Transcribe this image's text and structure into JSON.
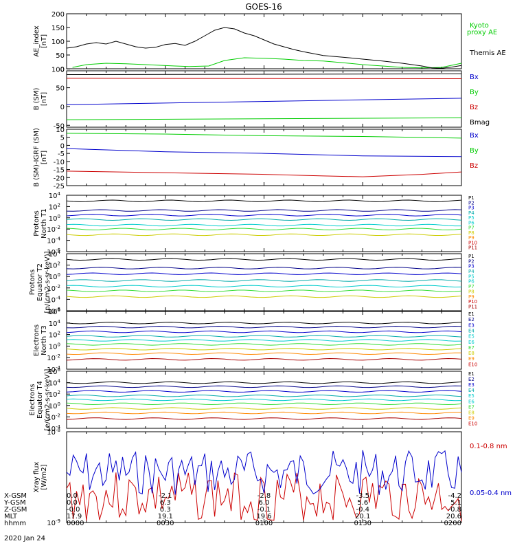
{
  "title": "GOES-16",
  "date": "2020 Jan 24",
  "footer": {
    "rows": [
      {
        "label": "X-GSM",
        "values": [
          "0.0",
          "-2.1",
          "-2.8",
          "-3.5",
          "-4.2"
        ]
      },
      {
        "label": "Y-GSM",
        "values": [
          "0.0",
          "6.3",
          "6.0",
          "5.6",
          "5.1"
        ]
      },
      {
        "label": "Z-GSM",
        "values": [
          "-0.0",
          "0.3",
          "-0.1",
          "-0.4",
          "-0.8"
        ]
      },
      {
        "label": "MLT",
        "values": [
          "17.9",
          "19.1",
          "19.6",
          "20.1",
          "20.6"
        ]
      },
      {
        "label": "hhmm",
        "values": [
          "0000",
          "0030",
          "0100",
          "0130",
          "0200"
        ]
      }
    ]
  },
  "colors": {
    "black": "#000000",
    "green": "#00cc00",
    "blue": "#0000cc",
    "red": "#cc0000",
    "cyan": "#00cccc",
    "teal": "#00aaaa",
    "yellow": "#cccc00",
    "orange": "#ff8800",
    "darkred": "#aa0000",
    "navy": "#000088",
    "lightgreen": "#33dd33"
  },
  "chart_data": [
    {
      "type": "line",
      "ylabel": "AE_index\n[nT]",
      "ylim": [
        0,
        200
      ],
      "yticks": [
        "0",
        "50",
        "100",
        "150",
        "200"
      ],
      "xlim": [
        0,
        2
      ],
      "series": [
        {
          "name": "Kyoto proxy AE",
          "color": "#00cc00",
          "x": [
            0.03,
            0.1,
            0.2,
            0.3,
            0.4,
            0.55,
            0.62,
            0.72,
            0.8,
            0.9,
            1.0,
            1.1,
            1.2,
            1.3,
            1.4,
            1.5,
            1.6,
            1.7,
            1.8,
            1.9,
            2.0
          ],
          "y": [
            5,
            15,
            20,
            18,
            15,
            10,
            8,
            10,
            30,
            40,
            38,
            35,
            30,
            28,
            22,
            15,
            10,
            5,
            3,
            5,
            20
          ]
        },
        {
          "name": "Themis AE",
          "color": "#000000",
          "x": [
            0.0,
            0.05,
            0.1,
            0.15,
            0.2,
            0.25,
            0.3,
            0.35,
            0.4,
            0.45,
            0.5,
            0.55,
            0.6,
            0.65,
            0.7,
            0.75,
            0.8,
            0.85,
            0.9,
            0.95,
            1.0,
            1.05,
            1.1,
            1.15,
            1.2,
            1.3,
            1.4,
            1.5,
            1.6,
            1.7,
            1.8,
            1.85,
            1.9,
            1.95,
            2.0
          ],
          "y": [
            75,
            80,
            90,
            95,
            90,
            100,
            90,
            80,
            75,
            78,
            88,
            92,
            85,
            100,
            120,
            140,
            150,
            145,
            130,
            120,
            105,
            90,
            80,
            70,
            62,
            48,
            42,
            35,
            28,
            20,
            10,
            3,
            2,
            6,
            12
          ]
        }
      ],
      "legend": [
        "Kyoto proxy AE",
        "Themis AE"
      ]
    },
    {
      "type": "line",
      "ylabel": "B (SM)\n[nT]",
      "ylim": [
        -55,
        95
      ],
      "yticks": [
        "-50",
        "0",
        "50",
        "100"
      ],
      "xlim": [
        0,
        2
      ],
      "series": [
        {
          "name": "Bx",
          "color": "#0000cc",
          "x": [
            0,
            2
          ],
          "y": [
            5,
            22
          ]
        },
        {
          "name": "By",
          "color": "#00cc00",
          "x": [
            0,
            2
          ],
          "y": [
            -35,
            -30
          ]
        },
        {
          "name": "Bz",
          "color": "#cc0000",
          "x": [
            0,
            2
          ],
          "y": [
            75,
            74
          ]
        },
        {
          "name": "Bmag",
          "color": "#000000",
          "x": [
            0,
            2
          ],
          "y": [
            85,
            87
          ]
        }
      ],
      "legend": [
        "Bx",
        "By",
        "Bz",
        "Bmag"
      ]
    },
    {
      "type": "line",
      "ylabel": "B (SM)-IGRF (SM)\n[nT]",
      "ylim": [
        -25,
        10
      ],
      "yticks": [
        "10",
        "5",
        "0",
        "-5",
        "-10",
        "-15",
        "-20",
        "-25"
      ],
      "xlim": [
        0,
        2
      ],
      "series": [
        {
          "name": "Bx",
          "color": "#0000cc",
          "x": [
            0,
            0.5,
            1.0,
            1.5,
            2.0
          ],
          "y": [
            -2,
            -4,
            -5,
            -6.5,
            -7
          ]
        },
        {
          "name": "By",
          "color": "#00cc00",
          "x": [
            0,
            0.5,
            1.0,
            1.5,
            2.0
          ],
          "y": [
            7.5,
            7,
            6,
            5.5,
            4.5
          ]
        },
        {
          "name": "Bz",
          "color": "#cc0000",
          "x": [
            0,
            0.5,
            1.0,
            1.3,
            1.5,
            1.8,
            2.0
          ],
          "y": [
            -16,
            -17,
            -18,
            -19,
            -19.5,
            -18,
            -16.5
          ]
        }
      ],
      "legend": [
        "Bx",
        "By",
        "Bz"
      ]
    },
    {
      "type": "line",
      "ylabel": "Protons\nNorth T1",
      "yscale": "log",
      "yticks": [
        "10^4",
        "10^2",
        "10^0",
        "10^-2",
        "10^-4",
        "10^-6"
      ],
      "legend": [
        "P1",
        "P2",
        "P3",
        "P4",
        "P5",
        "P6",
        "P7",
        "P8",
        "P9",
        "P10",
        "P11"
      ],
      "series": [
        {
          "name": "P1",
          "color": "#000000",
          "value": 1000
        },
        {
          "name": "P2",
          "color": "#000088",
          "value": 20
        },
        {
          "name": "P3",
          "color": "#0000cc",
          "value": 3
        },
        {
          "name": "P4",
          "color": "#00aaaa",
          "value": 0.5
        },
        {
          "name": "P5",
          "color": "#00cccc",
          "value": 0.05
        },
        {
          "name": "P6",
          "color": "#33dd33",
          "value": 0.01
        },
        {
          "name": "P7",
          "color": "#cccc00",
          "value": 0.001
        }
      ]
    },
    {
      "type": "line",
      "ylabel": "Protons\nEquator T2\n[p/(cm2-s-sr-keV)]",
      "yscale": "log",
      "yticks": [
        "10^4",
        "10^2",
        "10^0",
        "10^-2",
        "10^-4",
        "10^-6"
      ],
      "legend": [
        "P1",
        "P2",
        "P3",
        "P4",
        "P5",
        "P6",
        "P7",
        "P8",
        "P9",
        "P10",
        "P11"
      ],
      "series": [
        {
          "name": "P1",
          "color": "#000000",
          "value": 1000
        },
        {
          "name": "P2",
          "color": "#000088",
          "value": 30
        },
        {
          "name": "P3",
          "color": "#0000cc",
          "value": 3
        },
        {
          "name": "P4",
          "color": "#00aaaa",
          "value": 0.2
        },
        {
          "name": "P5",
          "color": "#00cccc",
          "value": 0.02
        },
        {
          "name": "P6",
          "color": "#33dd33",
          "value": 0.003
        },
        {
          "name": "P7",
          "color": "#cccc00",
          "value": 0.0003
        }
      ]
    },
    {
      "type": "line",
      "ylabel": "Electrons\nNorth T3",
      "yscale": "log",
      "yticks": [
        "10^6",
        "10^4",
        "10^2",
        "10^0",
        "10^-2",
        "10^-4"
      ],
      "legend": [
        "E1",
        "E2",
        "E3",
        "E4",
        "E5",
        "E6",
        "E7",
        "E8",
        "E9",
        "E10"
      ],
      "series": [
        {
          "name": "E1",
          "color": "#000000",
          "value": 10000
        },
        {
          "name": "E2",
          "color": "#000088",
          "value": 2000
        },
        {
          "name": "E3",
          "color": "#0000cc",
          "value": 300
        },
        {
          "name": "E4",
          "color": "#00aaaa",
          "value": 50
        },
        {
          "name": "E5",
          "color": "#00cccc",
          "value": 10
        },
        {
          "name": "E6",
          "color": "#33dd33",
          "value": 2
        },
        {
          "name": "E7",
          "color": "#cccc00",
          "value": 0.3
        },
        {
          "name": "E8",
          "color": "#ff8800",
          "value": 0.05
        },
        {
          "name": "E10",
          "color": "#aa0000",
          "value": 0.005
        }
      ]
    },
    {
      "type": "line",
      "ylabel": "Electrons\nEquator T4\n[e/(cm2-s-sr-keV)]",
      "yscale": "log",
      "yticks": [
        "10^6",
        "10^4",
        "10^2",
        "10^0",
        "10^-2",
        "10^-4"
      ],
      "legend": [
        "E1",
        "E2",
        "E3",
        "E4",
        "E5",
        "E6",
        "E7",
        "E8",
        "E9",
        "E10"
      ],
      "series": [
        {
          "name": "E1",
          "color": "#000000",
          "value": 10000
        },
        {
          "name": "E2",
          "color": "#000088",
          "value": 2000
        },
        {
          "name": "E3",
          "color": "#0000cc",
          "value": 300
        },
        {
          "name": "E4",
          "color": "#00aaaa",
          "value": 50
        },
        {
          "name": "E5",
          "color": "#00cccc",
          "value": 10
        },
        {
          "name": "E6",
          "color": "#33dd33",
          "value": 2
        },
        {
          "name": "E7",
          "color": "#cccc00",
          "value": 0.3
        },
        {
          "name": "E8",
          "color": "#ff8800",
          "value": 0.05
        },
        {
          "name": "E10",
          "color": "#aa0000",
          "value": 0.005
        }
      ]
    },
    {
      "type": "line",
      "ylabel": "Xray flux\n[W/m2]",
      "yscale": "log",
      "yticks": [
        "10^-8",
        "10^-9"
      ],
      "legend": [
        "0.1-0.8 nm",
        "0.05-0.4 nm"
      ],
      "series": [
        {
          "name": "0.1-0.8 nm",
          "color": "#cc0000"
        },
        {
          "name": "0.05-0.4 nm",
          "color": "#0000cc"
        }
      ]
    }
  ]
}
